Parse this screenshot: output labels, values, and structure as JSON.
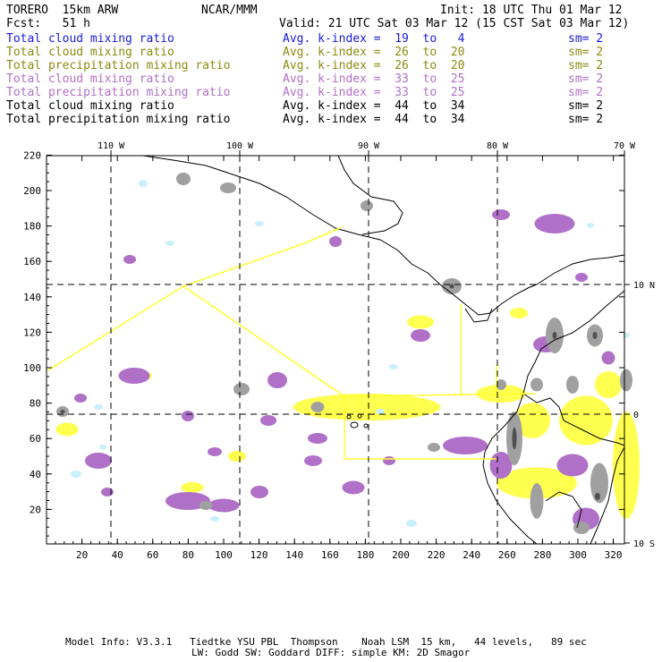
{
  "header": {
    "model": "TORERO  15km ARW",
    "center": "NCAR/MMM",
    "init": "Init: 18 UTC Thu 01 Mar 12",
    "fcst": "Fcst:   51 h",
    "valid": "Valid: 21 UTC Sat 03 Mar 12 (15 CST Sat 03 Mar 12)"
  },
  "fields": [
    {
      "name": "Total cloud mixing ratio",
      "kindex": "Avg. k-index =  19  to   4",
      "sm": "sm= 2",
      "color": "#1a1adc"
    },
    {
      "name": "Total cloud mixing ratio",
      "kindex": "Avg. k-index =  26  to  20",
      "sm": "sm= 2",
      "color": "#8a8a10"
    },
    {
      "name": "Total precipitation mixing ratio",
      "kindex": "Avg. k-index =  26  to  20",
      "sm": "sm= 2",
      "color": "#8a8a10"
    },
    {
      "name": "Total cloud mixing ratio",
      "kindex": "Avg. k-index =  33  to  25",
      "sm": "sm= 2",
      "color": "#b070c8"
    },
    {
      "name": "Total precipitation mixing ratio",
      "kindex": "Avg. k-index =  33  to  25",
      "sm": "sm= 2",
      "color": "#b070c8"
    },
    {
      "name": "Total cloud mixing ratio",
      "kindex": "Avg. k-index =  44  to  34",
      "sm": "sm= 2",
      "color": "#000000"
    },
    {
      "name": "Total precipitation mixing ratio",
      "kindex": "Avg. k-index =  44  to  34",
      "sm": "sm= 2",
      "color": "#000000"
    }
  ],
  "map": {
    "x_ticks": [
      "20",
      "40",
      "60",
      "80",
      "100",
      "120",
      "140",
      "160",
      "180",
      "200",
      "220",
      "240",
      "260",
      "280",
      "300",
      "320"
    ],
    "y_ticks": [
      "220",
      "200",
      "180",
      "160",
      "140",
      "120",
      "100",
      "80",
      "60",
      "40",
      "20"
    ],
    "lon_labels": [
      "110 W",
      "100 W",
      "90 W",
      "80 W",
      "70 W"
    ],
    "lat_labels": [
      "10 N",
      "0",
      "10 S"
    ],
    "colors": {
      "light_cyan": "#c8f0fa",
      "yellow": "#ffff50",
      "purple": "#b070c8",
      "gray": "#a0a0a0",
      "dark_gray": "#505050",
      "boundary": "#ffff30",
      "coast": "#000000"
    }
  },
  "footer": {
    "line1": "Model Info: V3.3.1   Tiedtke YSU PBL  Thompson    Noah LSM  15 km,   44 levels,   89 sec",
    "line2": "LW: Godd SW: Goddard DIFF: simple KM: 2D Smagor"
  }
}
